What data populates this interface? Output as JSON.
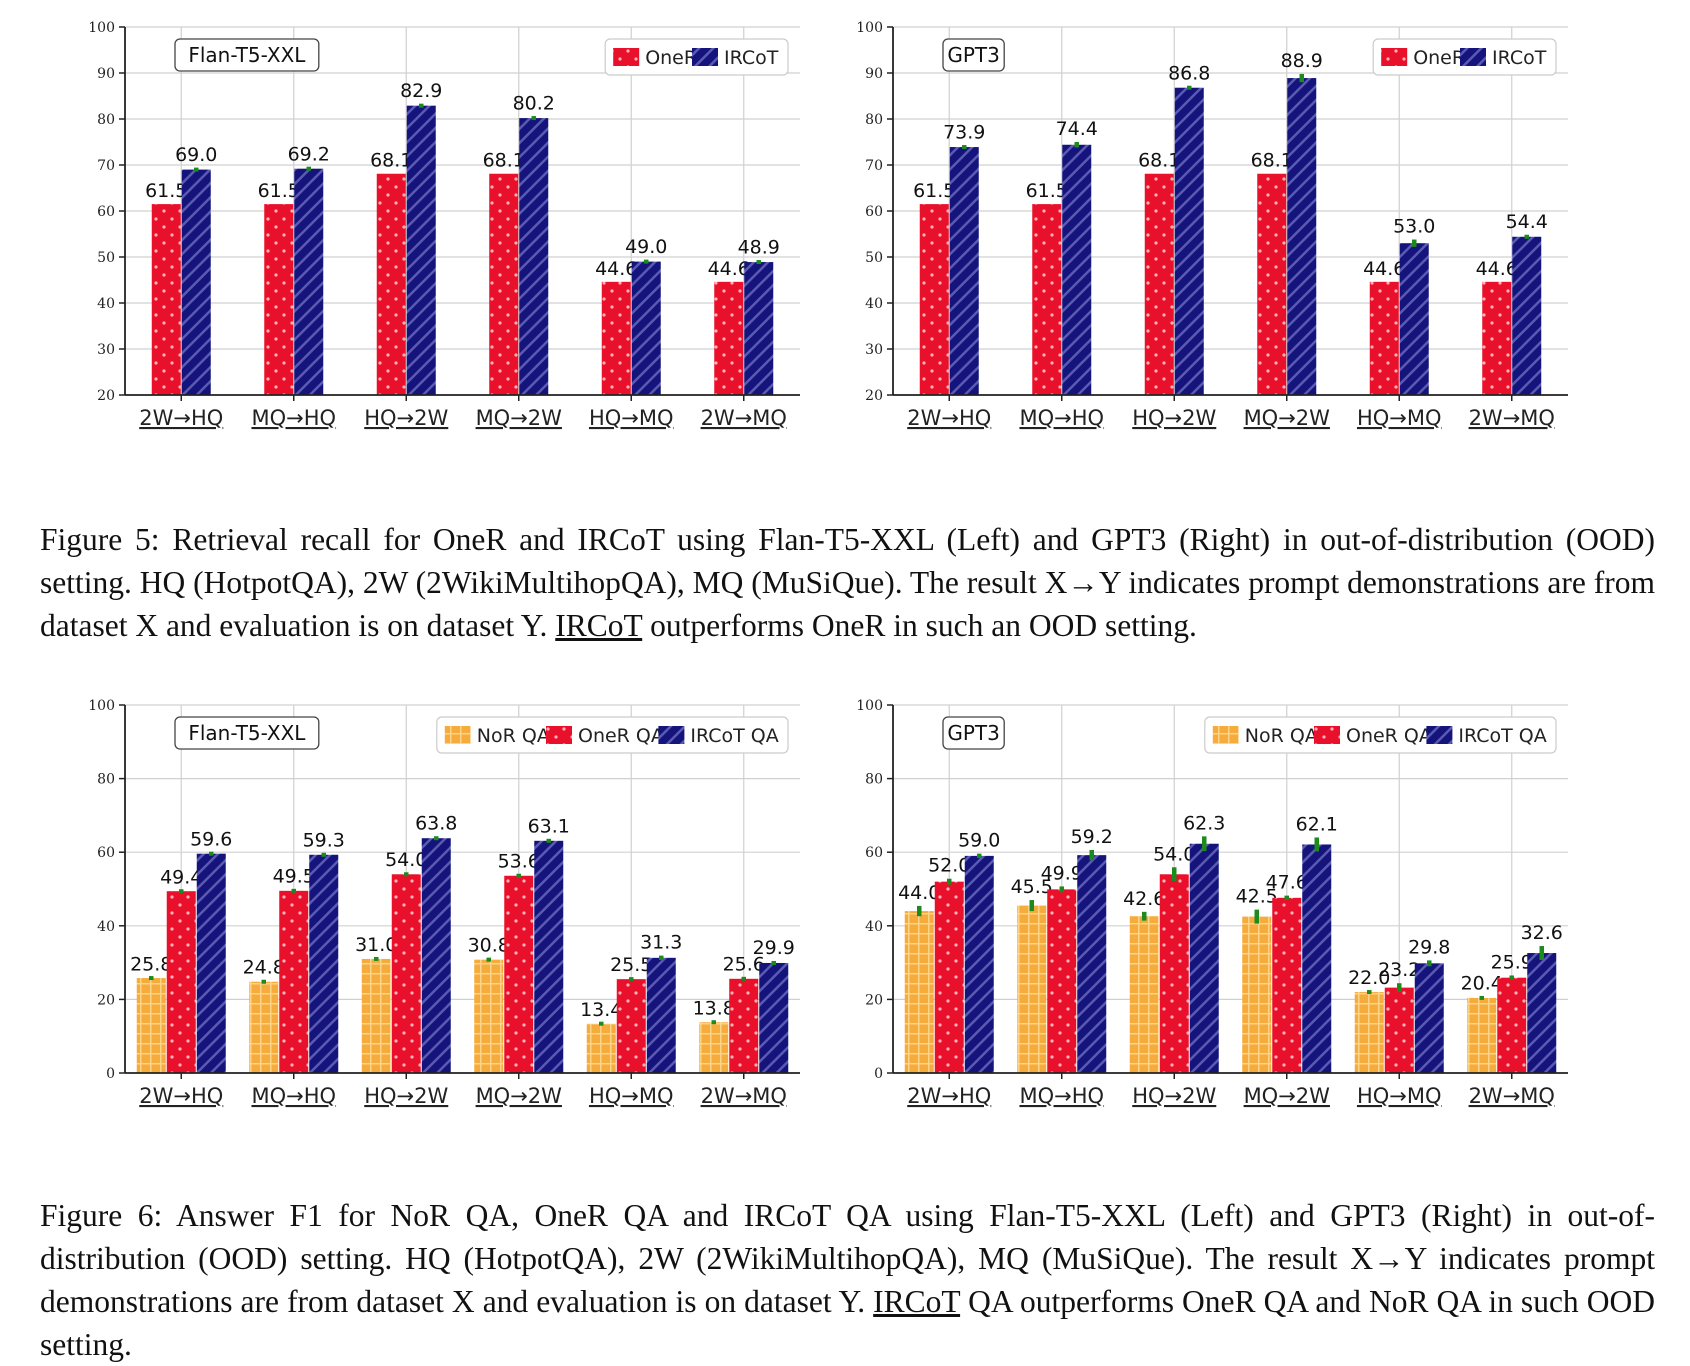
{
  "figure5": {
    "caption_before_ul": "Figure 5: Retrieval recall for OneR and IRCoT using Flan-T5-XXL (Left) and GPT3 (Right) in out-of-distribution (OOD) setting. HQ (HotpotQA), 2W (2WikiMultihopQA), MQ (MuSiQue). The result X→Y indicates prompt demonstrations are from dataset X and evaluation is on dataset Y. ",
    "caption_ul": "IRCoT",
    "caption_after_ul": " outperforms OneR in such an OOD setting."
  },
  "figure6": {
    "caption_before_ul": "Figure 6: Answer F1 for NoR QA, OneR QA and IRCoT QA using Flan-T5-XXL (Left) and GPT3 (Right) in out-of-distribution (OOD) setting. HQ (HotpotQA), 2W (2WikiMultihopQA), MQ (MuSiQue). The result X→Y indicates prompt demonstrations are from dataset X and evaluation is on dataset Y. ",
    "caption_ul": "IRCoT",
    "caption_after_ul": " QA outperforms OneR QA and NoR QA in such OOD setting."
  },
  "colors": {
    "nor": "#f5ac3c",
    "oner": "#e8102a",
    "ircot": "#14147c",
    "err": "#1c8a1c"
  },
  "chart_data": [
    {
      "type": "bar",
      "model": "Flan-T5-XXL",
      "categories": [
        "2W→HQ",
        "MQ→HQ",
        "HQ→2W",
        "MQ→2W",
        "HQ→MQ",
        "2W→MQ"
      ],
      "ylim": [
        20,
        100
      ],
      "yticks": [
        20,
        30,
        40,
        50,
        60,
        70,
        80,
        90,
        100
      ],
      "legend_position": "top-right",
      "grid": true,
      "series": [
        {
          "name": "OneR",
          "key": "oner",
          "values": [
            61.5,
            61.5,
            68.1,
            68.1,
            44.6,
            44.6
          ],
          "labels": [
            "61.5",
            "61.5",
            "68.1",
            "68.1",
            "44.6",
            "44.6"
          ],
          "errors": [
            0,
            0,
            0,
            0,
            0,
            0
          ]
        },
        {
          "name": "IRCoT",
          "key": "ircot",
          "values": [
            69.0,
            69.2,
            82.9,
            80.2,
            49.0,
            48.9
          ],
          "labels": [
            "69.0",
            "69.2",
            "82.9",
            "80.2",
            "49.0",
            "48.9"
          ],
          "errors": [
            0.3,
            0.3,
            0.4,
            0.3,
            0.3,
            0.3
          ]
        }
      ]
    },
    {
      "type": "bar",
      "model": "GPT3",
      "categories": [
        "2W→HQ",
        "MQ→HQ",
        "HQ→2W",
        "MQ→2W",
        "HQ→MQ",
        "2W→MQ"
      ],
      "ylim": [
        20,
        100
      ],
      "yticks": [
        20,
        30,
        40,
        50,
        60,
        70,
        80,
        90,
        100
      ],
      "legend_position": "top-right",
      "grid": true,
      "series": [
        {
          "name": "OneR",
          "key": "oner",
          "values": [
            61.5,
            61.5,
            68.1,
            68.1,
            44.6,
            44.6
          ],
          "labels": [
            "61.5",
            "61.5",
            "68.1",
            "68.1",
            "44.6",
            "44.6"
          ],
          "errors": [
            0,
            0,
            0,
            0,
            0,
            0
          ]
        },
        {
          "name": "IRCoT",
          "key": "ircot",
          "values": [
            73.9,
            74.4,
            86.8,
            88.9,
            53.0,
            54.4
          ],
          "labels": [
            "73.9",
            "74.4",
            "86.8",
            "88.9",
            "53.0",
            "54.4"
          ],
          "errors": [
            0.3,
            0.6,
            0.3,
            0.9,
            0.8,
            0.4
          ]
        }
      ]
    },
    {
      "type": "bar",
      "model": "Flan-T5-XXL",
      "categories": [
        "2W→HQ",
        "MQ→HQ",
        "HQ→2W",
        "MQ→2W",
        "HQ→MQ",
        "2W→MQ"
      ],
      "ylim": [
        0,
        100
      ],
      "yticks": [
        0,
        20,
        40,
        60,
        80,
        100
      ],
      "legend_position": "top-right",
      "grid": true,
      "series": [
        {
          "name": "NoR QA",
          "key": "nor",
          "values": [
            25.8,
            24.8,
            31.0,
            30.8,
            13.4,
            13.8
          ],
          "labels": [
            "25.8",
            "24.8",
            "31.0",
            "30.8",
            "13.4",
            "13.8"
          ],
          "errors": [
            0.2,
            0.4,
            0.2,
            0.3,
            0.2,
            0.2
          ]
        },
        {
          "name": "OneR QA",
          "key": "oner",
          "values": [
            49.4,
            49.5,
            54.0,
            53.6,
            25.5,
            25.6
          ],
          "labels": [
            "49.4",
            "49.5",
            "54.0",
            "53.6",
            "25.5",
            "25.6"
          ],
          "errors": [
            0.2,
            0.3,
            0.4,
            0.3,
            0.3,
            0.4
          ]
        },
        {
          "name": "IRCoT QA",
          "key": "ircot",
          "values": [
            59.6,
            59.3,
            63.8,
            63.1,
            31.3,
            29.9
          ],
          "labels": [
            "59.6",
            "59.3",
            "63.8",
            "63.1",
            "31.3",
            "29.9"
          ],
          "errors": [
            0.3,
            0.3,
            0.4,
            0.4,
            0.6,
            0.5
          ]
        }
      ]
    },
    {
      "type": "bar",
      "model": "GPT3",
      "categories": [
        "2W→HQ",
        "MQ→HQ",
        "HQ→2W",
        "MQ→2W",
        "HQ→MQ",
        "2W→MQ"
      ],
      "ylim": [
        0,
        100
      ],
      "yticks": [
        0,
        20,
        40,
        60,
        80,
        100
      ],
      "legend_position": "top-right",
      "grid": true,
      "series": [
        {
          "name": "NoR QA",
          "key": "nor",
          "values": [
            44.0,
            45.5,
            42.6,
            42.5,
            22.0,
            20.4
          ],
          "labels": [
            "44.0",
            "45.5",
            "42.6",
            "42.5",
            "22.0",
            "20.4"
          ],
          "errors": [
            1.4,
            1.5,
            1.2,
            1.9,
            0.3,
            0.4
          ]
        },
        {
          "name": "OneR QA",
          "key": "oner",
          "values": [
            52.0,
            49.9,
            54.0,
            47.6,
            23.2,
            25.9
          ],
          "labels": [
            "52.0",
            "49.9",
            "54.0",
            "47.6",
            "23.2",
            "25.9"
          ],
          "errors": [
            0.8,
            0.8,
            1.9,
            0.6,
            1.2,
            0.6
          ]
        },
        {
          "name": "IRCoT QA",
          "key": "ircot",
          "values": [
            59.0,
            59.2,
            62.3,
            62.1,
            29.8,
            32.6
          ],
          "labels": [
            "59.0",
            "59.2",
            "62.3",
            "62.1",
            "29.8",
            "32.6"
          ],
          "errors": [
            0.6,
            1.4,
            2.0,
            1.9,
            0.8,
            1.9
          ]
        }
      ]
    }
  ]
}
